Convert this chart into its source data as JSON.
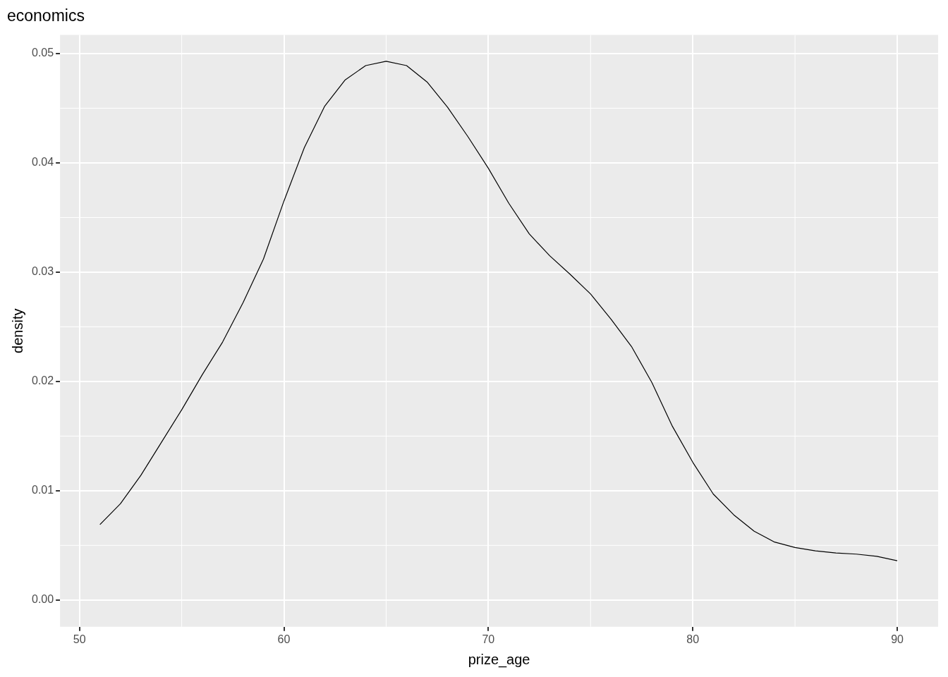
{
  "chart_data": {
    "type": "line",
    "title": "economics",
    "xlabel": "prize_age",
    "ylabel": "density",
    "series": [
      {
        "color": "#000000",
        "x": [
          51,
          52,
          53,
          54,
          55,
          56,
          57,
          58,
          59,
          60,
          61,
          62,
          63,
          64,
          65,
          66,
          67,
          68,
          69,
          70,
          71,
          72,
          73,
          74,
          75,
          76,
          77,
          78,
          79,
          80,
          81,
          82,
          83,
          84,
          85,
          86,
          87,
          88,
          89,
          90
        ],
        "values": [
          0.0069,
          0.0088,
          0.0114,
          0.0144,
          0.0174,
          0.0206,
          0.0236,
          0.0272,
          0.0312,
          0.0365,
          0.0414,
          0.0452,
          0.0476,
          0.0489,
          0.0493,
          0.0489,
          0.0474,
          0.0451,
          0.0424,
          0.0395,
          0.0363,
          0.0335,
          0.0315,
          0.0298,
          0.028,
          0.0257,
          0.0232,
          0.0199,
          0.0159,
          0.0126,
          0.0097,
          0.0078,
          0.0063,
          0.0053,
          0.0048,
          0.0045,
          0.0043,
          0.0042,
          0.004,
          0.0036
        ]
      }
    ],
    "xlim": [
      49.05,
      92.0
    ],
    "xticks": [
      50,
      60,
      70,
      80,
      90
    ],
    "ylim": [
      -0.00245,
      0.0517
    ],
    "yticks": [
      {
        "value": 0,
        "label": "0.00"
      },
      {
        "value": 0.01,
        "label": "0.01"
      },
      {
        "value": 0.02,
        "label": "0.02"
      },
      {
        "value": 0.03,
        "label": "0.03"
      },
      {
        "value": 0.04,
        "label": "0.04"
      },
      {
        "value": 0.05,
        "label": "0.05"
      }
    ],
    "grid": true,
    "legend": false,
    "marker": "none",
    "line_style": "solid"
  }
}
